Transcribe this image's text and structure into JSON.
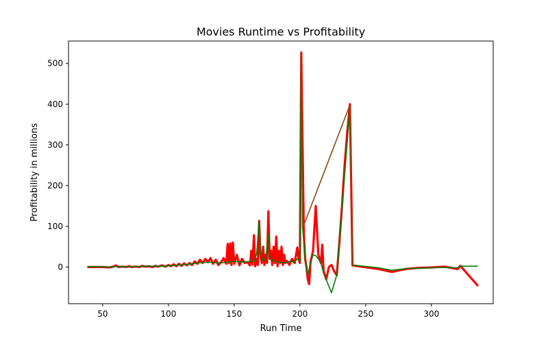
{
  "chart_data": {
    "type": "line",
    "title": "Movies Runtime vs Profitability",
    "xlabel": "Run Time",
    "ylabel": "Profitability in millions",
    "xlim": [
      24,
      347
    ],
    "ylim": [
      -90,
      555
    ],
    "xticks": [
      50,
      100,
      150,
      200,
      250,
      300
    ],
    "yticks": [
      0,
      100,
      200,
      300,
      400,
      500
    ],
    "grid": false,
    "legend": "none",
    "series": [
      {
        "color": "#ff0000",
        "line_width": 3.2,
        "points": [
          [
            39,
            0
          ],
          [
            45,
            0
          ],
          [
            50,
            0
          ],
          [
            55,
            -1
          ],
          [
            58,
            1
          ],
          [
            60,
            4
          ],
          [
            62,
            0
          ],
          [
            65,
            1
          ],
          [
            68,
            0
          ],
          [
            70,
            2
          ],
          [
            72,
            0
          ],
          [
            75,
            1
          ],
          [
            78,
            0
          ],
          [
            80,
            3
          ],
          [
            82,
            1
          ],
          [
            85,
            2
          ],
          [
            88,
            0
          ],
          [
            90,
            3
          ],
          [
            92,
            1
          ],
          [
            95,
            4
          ],
          [
            98,
            1
          ],
          [
            100,
            5
          ],
          [
            102,
            2
          ],
          [
            104,
            7
          ],
          [
            106,
            2
          ],
          [
            108,
            8
          ],
          [
            110,
            3
          ],
          [
            112,
            9
          ],
          [
            114,
            4
          ],
          [
            116,
            10
          ],
          [
            118,
            5
          ],
          [
            120,
            14
          ],
          [
            122,
            8
          ],
          [
            124,
            18
          ],
          [
            126,
            10
          ],
          [
            128,
            20
          ],
          [
            130,
            12
          ],
          [
            132,
            22
          ],
          [
            134,
            8
          ],
          [
            136,
            18
          ],
          [
            138,
            5
          ],
          [
            140,
            12
          ],
          [
            142,
            22
          ],
          [
            144,
            8
          ],
          [
            145,
            57
          ],
          [
            146,
            10
          ],
          [
            147,
            58
          ],
          [
            148,
            5
          ],
          [
            149,
            60
          ],
          [
            150,
            8
          ],
          [
            152,
            30
          ],
          [
            154,
            4
          ],
          [
            156,
            20
          ],
          [
            158,
            10
          ],
          [
            160,
            12
          ],
          [
            162,
            4
          ],
          [
            163,
            40
          ],
          [
            164,
            6
          ],
          [
            165,
            78
          ],
          [
            166,
            2
          ],
          [
            167,
            20
          ],
          [
            168,
            5
          ],
          [
            169,
            113
          ],
          [
            170,
            30
          ],
          [
            171,
            10
          ],
          [
            172,
            50
          ],
          [
            173,
            5
          ],
          [
            174,
            30
          ],
          [
            175,
            10
          ],
          [
            176,
            137
          ],
          [
            177,
            20
          ],
          [
            178,
            40
          ],
          [
            179,
            5
          ],
          [
            180,
            50
          ],
          [
            181,
            10
          ],
          [
            182,
            75
          ],
          [
            183,
            2
          ],
          [
            184,
            40
          ],
          [
            185,
            10
          ],
          [
            186,
            50
          ],
          [
            187,
            5
          ],
          [
            188,
            30
          ],
          [
            189,
            10
          ],
          [
            190,
            15
          ],
          [
            192,
            5
          ],
          [
            194,
            20
          ],
          [
            196,
            10
          ],
          [
            198,
            48
          ],
          [
            199,
            20
          ],
          [
            200,
            10
          ],
          [
            201,
            527
          ],
          [
            202,
            300
          ],
          [
            203,
            80
          ],
          [
            204,
            20
          ],
          [
            205,
            0
          ],
          [
            206,
            -30
          ],
          [
            207,
            -42
          ],
          [
            208,
            10
          ],
          [
            210,
            40
          ],
          [
            212,
            150
          ],
          [
            214,
            30
          ],
          [
            216,
            10
          ],
          [
            217,
            55
          ],
          [
            218,
            -10
          ],
          [
            220,
            -30
          ],
          [
            222,
            0
          ],
          [
            224,
            5
          ],
          [
            226,
            -10
          ],
          [
            228,
            -20
          ],
          [
            230,
            60
          ],
          [
            232,
            150
          ],
          [
            234,
            250
          ],
          [
            236,
            330
          ],
          [
            238,
            400
          ],
          [
            240,
            4
          ],
          [
            260,
            -5
          ],
          [
            270,
            -12
          ],
          [
            280,
            -5
          ],
          [
            290,
            -2
          ],
          [
            300,
            -1
          ],
          [
            310,
            1
          ],
          [
            320,
            -5
          ],
          [
            322,
            3
          ],
          [
            335,
            -45
          ]
        ]
      },
      {
        "color": "#008000",
        "line_width": 1.6,
        "points": [
          [
            39,
            1
          ],
          [
            45,
            1
          ],
          [
            50,
            1
          ],
          [
            55,
            0
          ],
          [
            60,
            1
          ],
          [
            65,
            1
          ],
          [
            70,
            1
          ],
          [
            75,
            1
          ],
          [
            80,
            2
          ],
          [
            85,
            2
          ],
          [
            90,
            2
          ],
          [
            95,
            2
          ],
          [
            100,
            3
          ],
          [
            105,
            4
          ],
          [
            110,
            5
          ],
          [
            115,
            7
          ],
          [
            120,
            9
          ],
          [
            125,
            11
          ],
          [
            130,
            12
          ],
          [
            135,
            11
          ],
          [
            140,
            10
          ],
          [
            145,
            12
          ],
          [
            150,
            14
          ],
          [
            155,
            12
          ],
          [
            160,
            13
          ],
          [
            165,
            15
          ],
          [
            167,
            30
          ],
          [
            169,
            112
          ],
          [
            170,
            35
          ],
          [
            172,
            15
          ],
          [
            174,
            20
          ],
          [
            176,
            80
          ],
          [
            177,
            25
          ],
          [
            180,
            15
          ],
          [
            184,
            12
          ],
          [
            188,
            10
          ],
          [
            192,
            14
          ],
          [
            196,
            12
          ],
          [
            198,
            20
          ],
          [
            200,
            15
          ],
          [
            201,
            523
          ],
          [
            202,
            100
          ],
          [
            204,
            20
          ],
          [
            206,
            -20
          ],
          [
            208,
            10
          ],
          [
            210,
            30
          ],
          [
            212,
            28
          ],
          [
            214,
            20
          ],
          [
            216,
            10
          ],
          [
            218,
            -15
          ],
          [
            224,
            -63
          ],
          [
            228,
            -20
          ],
          [
            238,
            390
          ],
          [
            240,
            5
          ],
          [
            260,
            -2
          ],
          [
            270,
            -8
          ],
          [
            280,
            -4
          ],
          [
            300,
            -2
          ],
          [
            310,
            -1
          ],
          [
            320,
            -2
          ],
          [
            322,
            2
          ],
          [
            335,
            2
          ]
        ]
      },
      {
        "color": "#8b4513",
        "line_width": 1.6,
        "points": [
          [
            201,
            527
          ],
          [
            202,
            95
          ],
          [
            238,
            398
          ],
          [
            240,
            4
          ]
        ]
      }
    ]
  }
}
